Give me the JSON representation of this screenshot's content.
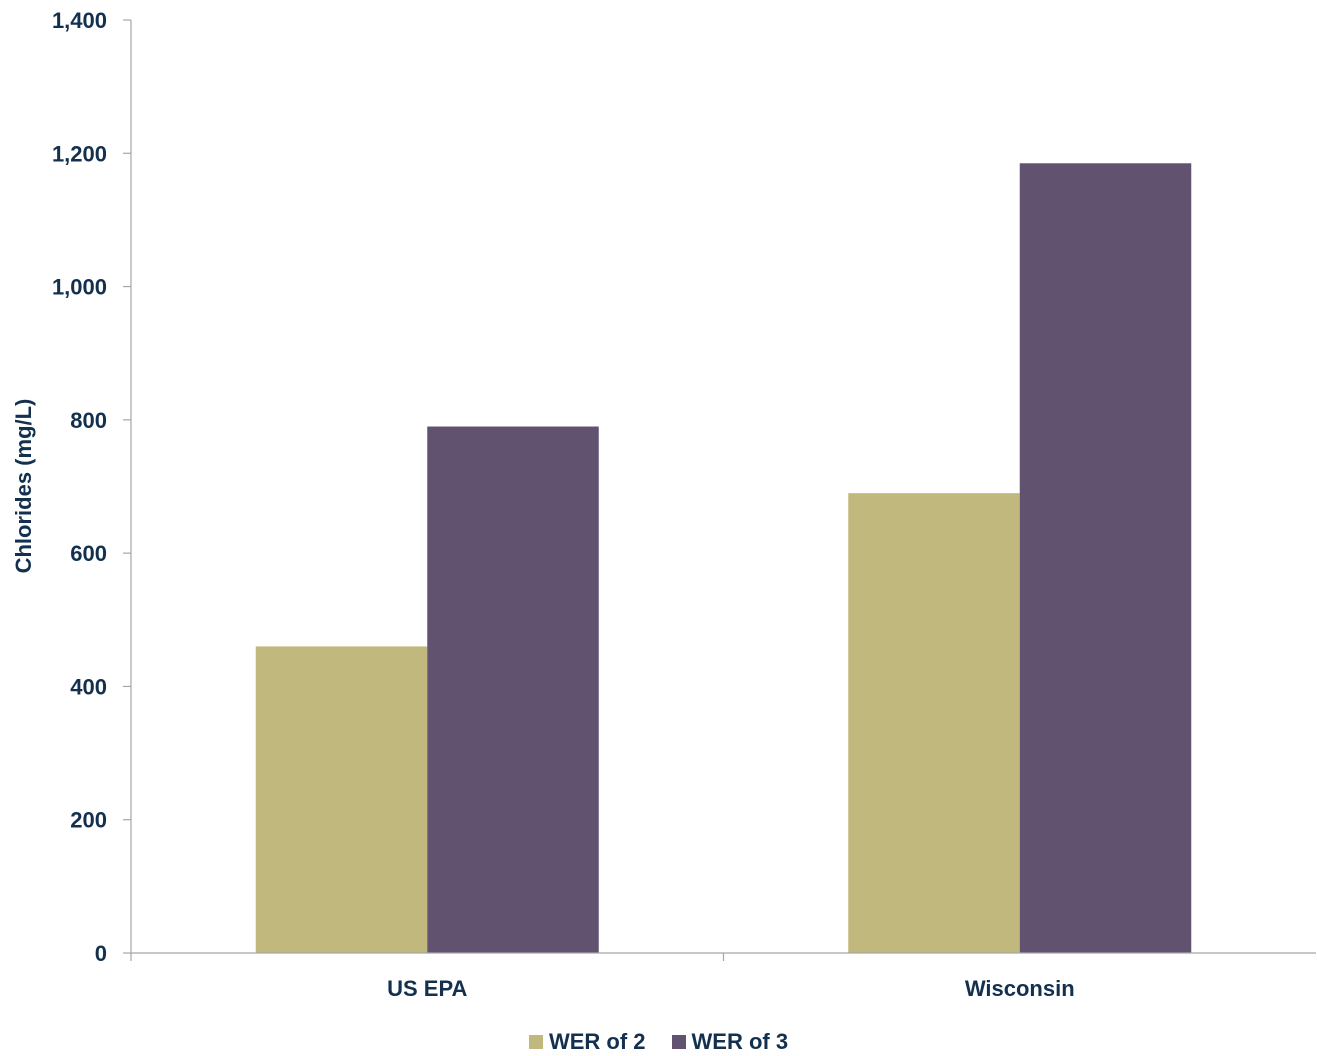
{
  "chart_data": {
    "type": "bar",
    "title": "",
    "xlabel": "",
    "ylabel": "Chlorides (mg/L)",
    "ylim": [
      0,
      1400
    ],
    "yticks": [
      0,
      200,
      400,
      600,
      800,
      1000,
      1200,
      1400
    ],
    "ytick_labels": [
      "0",
      "200",
      "400",
      "600",
      "800",
      "1,000",
      "1,200",
      "1,400"
    ],
    "categories": [
      "US EPA",
      "Wisconsin"
    ],
    "series": [
      {
        "name": "WER of 2",
        "values": [
          460,
          690
        ],
        "color": "#c0b87d"
      },
      {
        "name": "WER of 3",
        "values": [
          790,
          1185
        ],
        "color": "#61526f"
      }
    ],
    "grid": false,
    "legend_position": "bottom-center",
    "text_color": "#14304f",
    "axis_color": "#a6a6a6"
  }
}
